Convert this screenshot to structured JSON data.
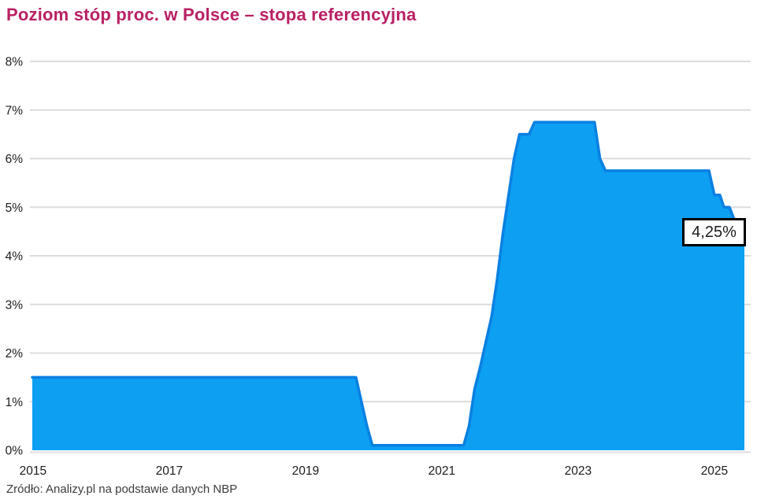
{
  "title": "Poziom stóp proc. w Polsce – stopa referencyjna",
  "source": "Zródło: Analizy.pl na podstawie danych NBP",
  "annotation": {
    "label": "4,25%"
  },
  "colors": {
    "title": "#B92062",
    "area_fill": "#0C9FF2",
    "area_stroke": "#0A80E2",
    "grid": "#DCDCDC",
    "axis_text": "#1C1C1C",
    "source_text": "#3D3D3D",
    "annotation_border": "#000000",
    "annotation_bg": "#FFFFFF"
  },
  "chart_data": {
    "type": "area",
    "title": "Poziom stóp proc. w Polsce – stopa referencyjna",
    "series_name": "stopa referencyjna",
    "ylabel": "",
    "xlabel": "",
    "ylim": [
      0,
      8
    ],
    "xlim": [
      2015.49,
      2025.94
    ],
    "grid": "horizontal",
    "legend": "none",
    "y_ticks": [
      {
        "label": "0%",
        "v": 0
      },
      {
        "label": "1%",
        "v": 1
      },
      {
        "label": "2%",
        "v": 2
      },
      {
        "label": "3%",
        "v": 3
      },
      {
        "label": "4%",
        "v": 4
      },
      {
        "label": "5%",
        "v": 5
      },
      {
        "label": "6%",
        "v": 6
      },
      {
        "label": "7%",
        "v": 7
      },
      {
        "label": "8%",
        "v": 8
      }
    ],
    "x_ticks": [
      {
        "label": "2015",
        "t": 2015.5
      },
      {
        "label": "2017",
        "t": 2017.5
      },
      {
        "label": "2019",
        "t": 2019.5
      },
      {
        "label": "2021",
        "t": 2021.5
      },
      {
        "label": "2023",
        "t": 2023.5
      },
      {
        "label": "2025",
        "t": 2025.5
      }
    ],
    "points": [
      [
        2015.49,
        1.5
      ],
      [
        2020.24,
        1.5
      ],
      [
        2020.32,
        1.0
      ],
      [
        2020.4,
        0.5
      ],
      [
        2020.48,
        0.1
      ],
      [
        2021.82,
        0.1
      ],
      [
        2021.9,
        0.5
      ],
      [
        2021.98,
        1.25
      ],
      [
        2022.07,
        1.75
      ],
      [
        2022.15,
        2.25
      ],
      [
        2022.23,
        2.75
      ],
      [
        2022.31,
        3.5
      ],
      [
        2022.4,
        4.5
      ],
      [
        2022.48,
        5.25
      ],
      [
        2022.56,
        6.0
      ],
      [
        2022.64,
        6.5
      ],
      [
        2022.78,
        6.5
      ],
      [
        2022.86,
        6.75
      ],
      [
        2023.74,
        6.75
      ],
      [
        2023.82,
        6.0
      ],
      [
        2023.9,
        5.75
      ],
      [
        2025.42,
        5.75
      ],
      [
        2025.5,
        5.25
      ],
      [
        2025.58,
        5.25
      ],
      [
        2025.64,
        5.0
      ],
      [
        2025.72,
        5.0
      ],
      [
        2025.79,
        4.75
      ],
      [
        2025.87,
        4.5
      ],
      [
        2025.94,
        4.25
      ]
    ],
    "final_value": 4.25,
    "final_value_label": "4,25%"
  }
}
